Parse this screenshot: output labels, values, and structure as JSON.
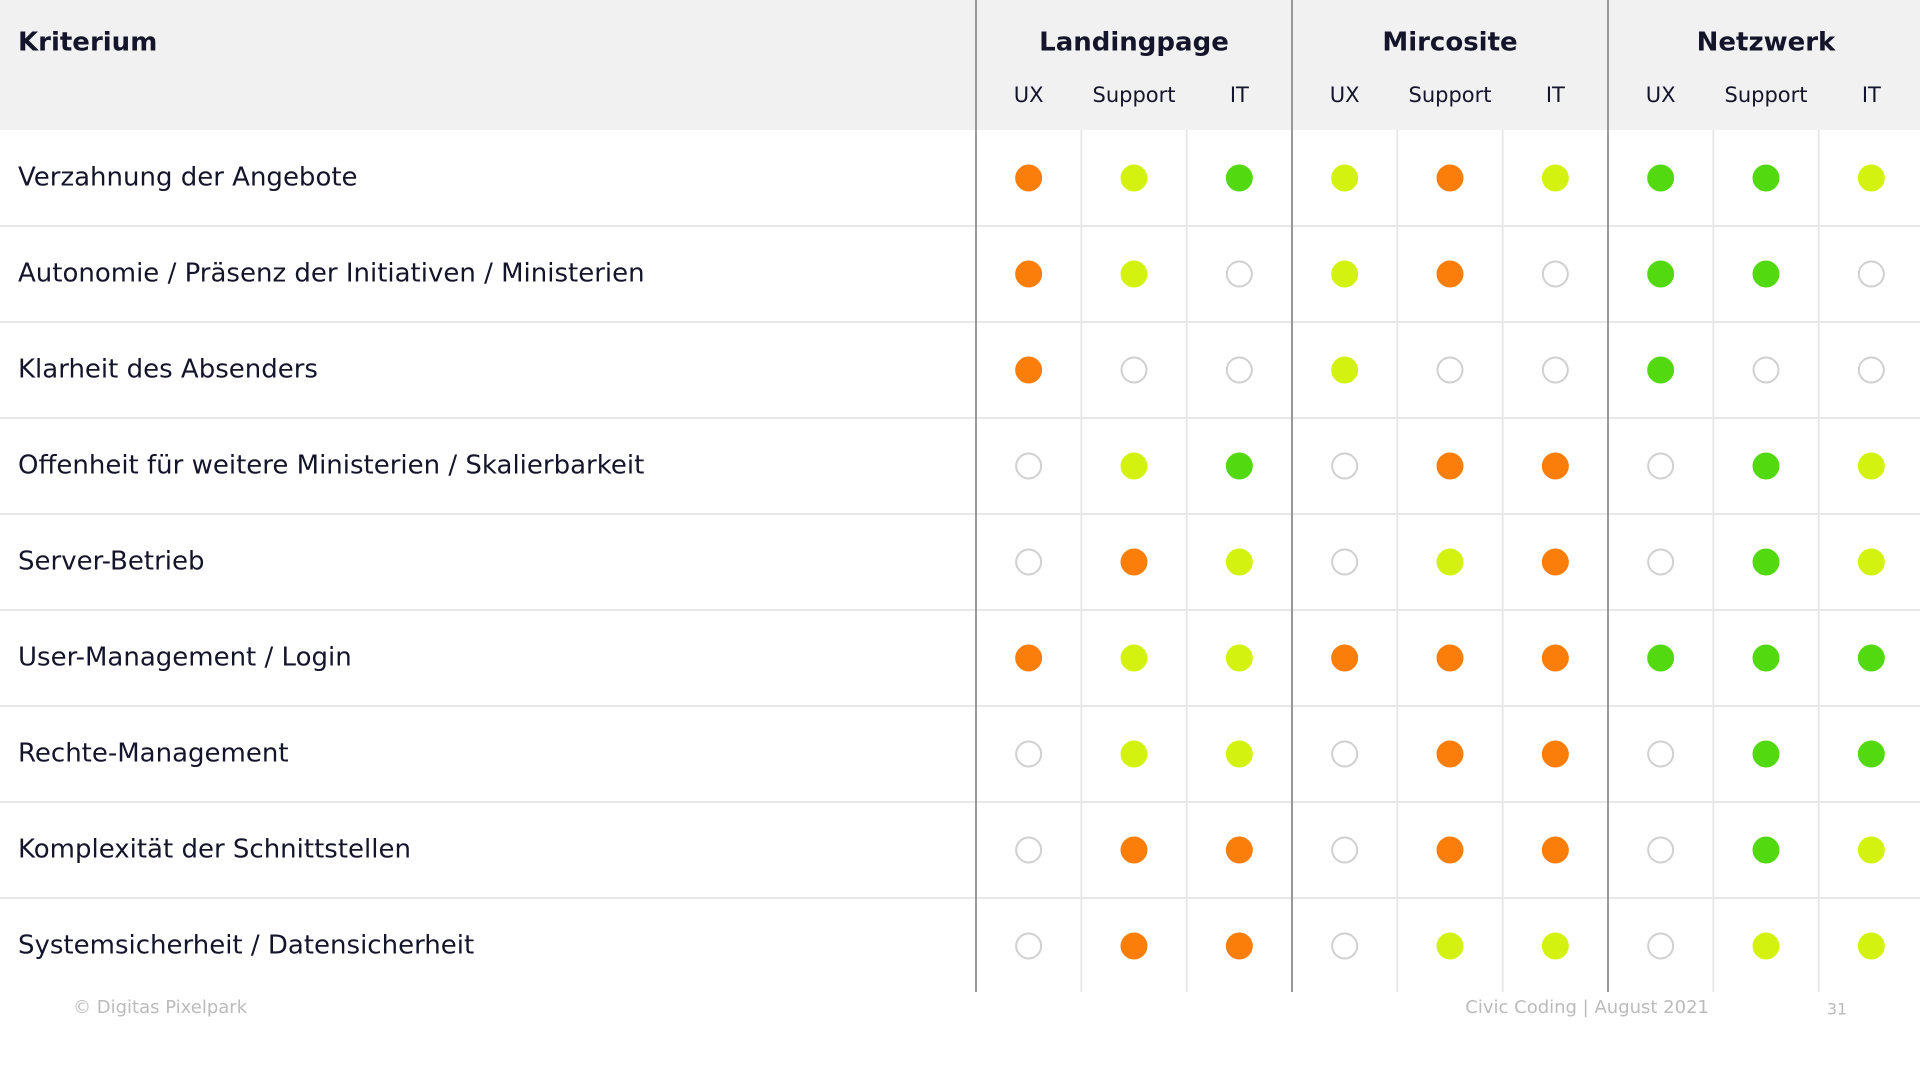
{
  "header": {
    "criterion": "Kriterium",
    "groups": [
      {
        "name": "Landingpage",
        "columns": [
          "UX",
          "Support",
          "IT"
        ]
      },
      {
        "name": "Mircosite",
        "columns": [
          "UX",
          "Support",
          "IT"
        ]
      },
      {
        "name": "Netzwerk",
        "columns": [
          "UX",
          "Support",
          "IT"
        ]
      }
    ]
  },
  "rows": [
    {
      "label": "Verzahnung der Angebote",
      "cells": [
        "#fb7d0a",
        "#d4f20f",
        "#52d90f",
        "#d4f20f",
        "#fb7d0a",
        "#d4f20f",
        "#52d90f",
        "#52d90f",
        "#d4f20f"
      ]
    },
    {
      "label": "Autonomie / Präsenz der Initiativen / Ministerien",
      "cells": [
        "#fb7d0a",
        "#d4f20f",
        null,
        "#d4f20f",
        "#fb7d0a",
        null,
        "#52d90f",
        "#52d90f",
        null
      ]
    },
    {
      "label": "Klarheit des Absenders",
      "cells": [
        "#fb7d0a",
        null,
        null,
        "#d4f20f",
        null,
        null,
        "#52d90f",
        null,
        null
      ]
    },
    {
      "label": "Offenheit für weitere Ministerien / Skalierbarkeit",
      "cells": [
        null,
        "#d4f20f",
        "#52d90f",
        null,
        "#fb7d0a",
        "#fb7d0a",
        null,
        "#52d90f",
        "#d4f20f"
      ]
    },
    {
      "label": "Server-Betrieb",
      "cells": [
        null,
        "#fb7d0a",
        "#d4f20f",
        null,
        "#d4f20f",
        "#fb7d0a",
        null,
        "#52d90f",
        "#d4f20f"
      ]
    },
    {
      "label": "User-Management / Login",
      "cells": [
        "#fb7d0a",
        "#d4f20f",
        "#d4f20f",
        "#fb7d0a",
        "#fb7d0a",
        "#fb7d0a",
        "#52d90f",
        "#52d90f",
        "#52d90f"
      ]
    },
    {
      "label": "Rechte-Management",
      "cells": [
        null,
        "#d4f20f",
        "#d4f20f",
        null,
        "#fb7d0a",
        "#fb7d0a",
        null,
        "#52d90f",
        "#52d90f"
      ]
    },
    {
      "label": "Komplexität der Schnittstellen",
      "cells": [
        null,
        "#fb7d0a",
        "#fb7d0a",
        null,
        "#fb7d0a",
        "#fb7d0a",
        null,
        "#52d90f",
        "#d4f20f"
      ]
    },
    {
      "label": "Systemsicherheit / Datensicherheit",
      "cells": [
        null,
        "#fb7d0a",
        "#fb7d0a",
        null,
        "#d4f20f",
        "#d4f20f",
        null,
        "#d4f20f",
        "#d4f20f"
      ]
    }
  ],
  "footer": {
    "copyright": "© Digitas Pixelpark",
    "event": "Civic Coding | August 2021",
    "page": "31"
  }
}
